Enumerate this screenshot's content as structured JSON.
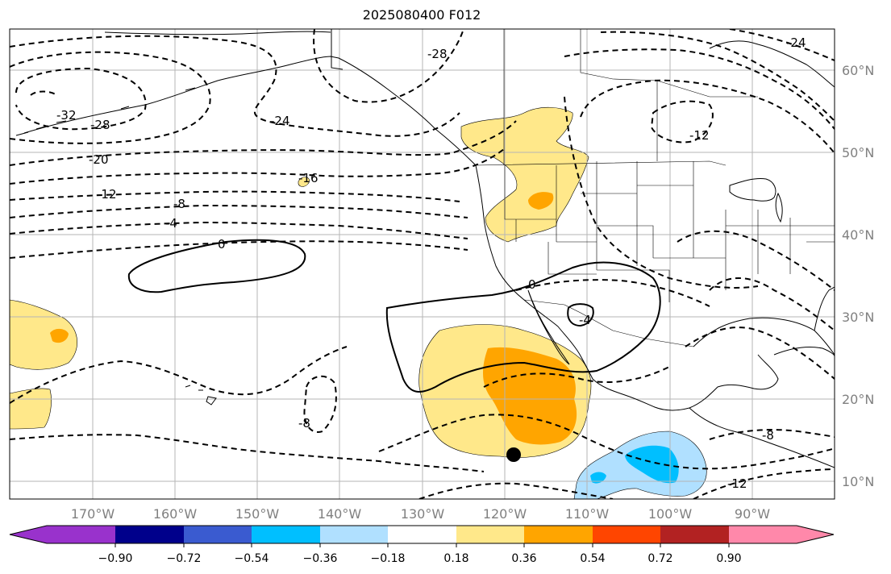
{
  "title": "2025080400 F012",
  "lon_labels": [
    "170°W",
    "160°W",
    "150°W",
    "140°W",
    "130°W",
    "120°W",
    "110°W",
    "100°W",
    "90°W"
  ],
  "lat_labels": [
    "60°N",
    "50°N",
    "40°N",
    "30°N",
    "20°N",
    "10°N"
  ],
  "colorbar": {
    "colors": [
      "#9932cc",
      "#00008b",
      "#3a5bd0",
      "#00bfff",
      "#b0e0ff",
      "#ffffff",
      "#ffe88a",
      "#ffa500",
      "#ff4500",
      "#b22222",
      "#ff88aa"
    ],
    "tick_labels": [
      "−0.90",
      "−0.72",
      "−0.54",
      "−0.36",
      "−0.18",
      "0.18",
      "0.36",
      "0.54",
      "0.72",
      "0.90"
    ]
  },
  "contour_labels": [
    "-32",
    "-28",
    "-24",
    "-20",
    "-16",
    "-12",
    "-8",
    "-4",
    "0",
    "0",
    "-4",
    "-8",
    "-8",
    "-12",
    "-28",
    "-24",
    "-12"
  ],
  "marker": "black-dot"
}
